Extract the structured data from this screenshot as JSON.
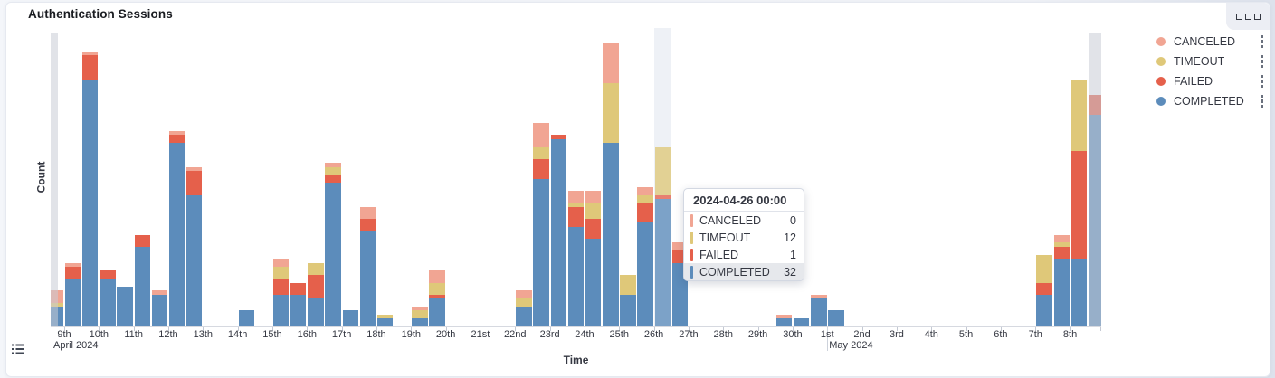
{
  "panel": {
    "title": "Authentication Sessions"
  },
  "icons": {
    "panel_options": "boxes-horizontal-icon",
    "legend_item_actions": "boxes-vertical-icon",
    "legend_toggle": "list-icon"
  },
  "colors": {
    "completed": "#5C8CBB",
    "failed": "#E5604B",
    "timeout": "#DFC879",
    "canceled": "#F1A593",
    "hover_band": "#EEF1F6",
    "edge_band": "rgba(200,204,214,0.55)"
  },
  "legend": {
    "items": [
      {
        "label": "CANCELED",
        "color": "canceled"
      },
      {
        "label": "TIMEOUT",
        "color": "timeout"
      },
      {
        "label": "FAILED",
        "color": "failed"
      },
      {
        "label": "COMPLETED",
        "color": "completed"
      }
    ]
  },
  "tooltip": {
    "header": "2024-04-26 00:00",
    "rows": [
      {
        "label": "CANCELED",
        "value": "0",
        "color": "canceled",
        "highlighted": false
      },
      {
        "label": "TIMEOUT",
        "value": "12",
        "color": "timeout",
        "highlighted": false
      },
      {
        "label": "FAILED",
        "value": "1",
        "color": "failed",
        "highlighted": false
      },
      {
        "label": "COMPLETED",
        "value": "32",
        "color": "completed",
        "highlighted": true
      }
    ]
  },
  "axes": {
    "x_title": "Time",
    "y_title": "Count",
    "y_tick_labels_visible": false,
    "x_labels": [
      "9th",
      "10th",
      "11th",
      "12th",
      "13th",
      "14th",
      "15th",
      "16th",
      "17th",
      "18th",
      "19th",
      "20th",
      "21st",
      "22nd",
      "23rd",
      "24th",
      "25th",
      "26th",
      "27th",
      "28th",
      "29th",
      "30th",
      "1st",
      "2nd",
      "3rd",
      "4th",
      "5th",
      "6th",
      "7th",
      "8th"
    ],
    "x_month_labels": [
      {
        "text": "April 2024",
        "day_index": 0
      },
      {
        "text": "May 2024",
        "day_index": 22
      }
    ]
  },
  "chart_data": {
    "type": "bar",
    "stacked": true,
    "x_start": "2024-04-08 12:00",
    "x_interval_hours": 12,
    "x_domain": [
      "2024-04-08",
      "2024-05-09"
    ],
    "ylim": [
      0,
      74
    ],
    "grid": false,
    "legend_position": "right",
    "hovered_index": 35,
    "hovered_bucket": "2024-04-26 00:00",
    "series": [
      {
        "name": "COMPLETED",
        "color_key": "completed",
        "values": [
          5,
          12,
          62,
          12,
          10,
          20,
          8,
          46,
          33,
          0,
          0,
          4,
          0,
          8,
          8,
          7,
          36,
          4,
          24,
          2,
          0,
          2,
          7,
          0,
          0,
          0,
          0,
          5,
          37,
          47,
          25,
          22,
          46,
          8,
          26,
          32,
          16,
          0,
          0,
          0,
          0,
          0,
          2,
          2,
          7,
          4,
          0,
          0,
          0,
          0,
          0,
          0,
          0,
          0,
          0,
          0,
          0,
          8,
          17,
          17,
          53
        ]
      },
      {
        "name": "FAILED",
        "color_key": "failed",
        "values": [
          0,
          3,
          6,
          2,
          0,
          3,
          0,
          2,
          6,
          0,
          0,
          0,
          0,
          4,
          3,
          6,
          2,
          0,
          3,
          0,
          0,
          0,
          1,
          0,
          0,
          0,
          0,
          0,
          5,
          1,
          5,
          5,
          0,
          0,
          5,
          1,
          3,
          0,
          0,
          0,
          0,
          0,
          0,
          0,
          0,
          0,
          0,
          0,
          0,
          0,
          0,
          0,
          0,
          0,
          0,
          0,
          0,
          3,
          3,
          27,
          5
        ]
      },
      {
        "name": "TIMEOUT",
        "color_key": "timeout",
        "values": [
          1,
          0,
          0,
          0,
          0,
          0,
          0,
          0,
          0,
          0,
          0,
          0,
          0,
          3,
          0,
          3,
          2,
          0,
          0,
          1,
          0,
          2,
          3,
          0,
          0,
          0,
          0,
          2,
          3,
          0,
          1,
          4,
          15,
          5,
          2,
          12,
          0,
          0,
          0,
          0,
          0,
          0,
          0,
          0,
          0,
          0,
          0,
          0,
          0,
          0,
          0,
          0,
          0,
          0,
          0,
          0,
          0,
          7,
          1,
          18,
          0
        ]
      },
      {
        "name": "CANCELED",
        "color_key": "canceled",
        "values": [
          3,
          1,
          1,
          0,
          0,
          0,
          1,
          1,
          1,
          0,
          0,
          0,
          0,
          2,
          0,
          0,
          1,
          0,
          3,
          0,
          0,
          1,
          3,
          0,
          0,
          0,
          0,
          2,
          6,
          0,
          3,
          3,
          10,
          0,
          2,
          0,
          2,
          0,
          0,
          0,
          0,
          0,
          1,
          0,
          1,
          0,
          0,
          0,
          0,
          0,
          0,
          0,
          0,
          0,
          0,
          0,
          0,
          0,
          2,
          0,
          0
        ]
      }
    ]
  }
}
